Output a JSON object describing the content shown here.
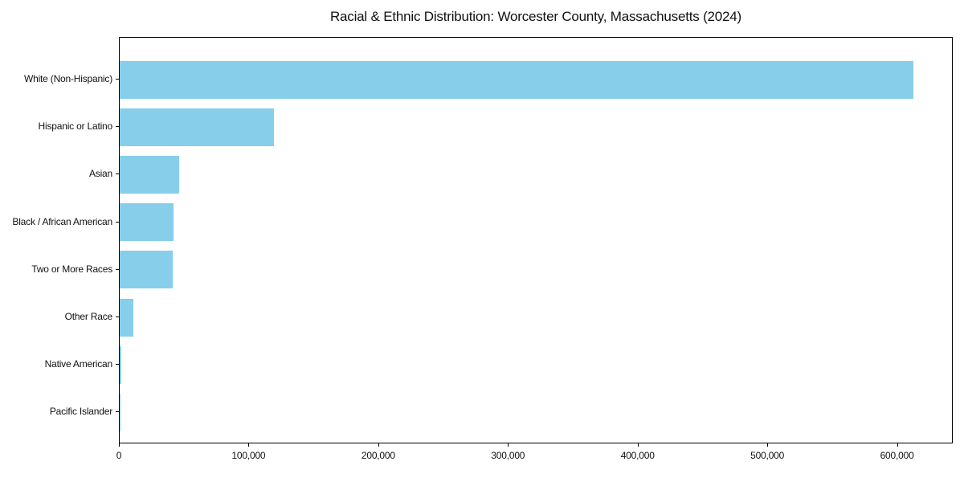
{
  "chart_data": {
    "type": "bar",
    "orientation": "horizontal",
    "title": "Racial & Ethnic Distribution: Worcester County, Massachusetts (2024)",
    "categories": [
      "White (Non-Hispanic)",
      "Hispanic or Latino",
      "Asian",
      "Black / African American",
      "Two or More Races",
      "Other Race",
      "Native American",
      "Pacific Islander"
    ],
    "values": [
      612000,
      119000,
      46000,
      41500,
      41000,
      10500,
      1500,
      400
    ],
    "xlabel": "",
    "ylabel": "",
    "xlim": [
      0,
      643000
    ],
    "xticks": [
      0,
      100000,
      200000,
      300000,
      400000,
      500000,
      600000
    ],
    "xtick_labels": [
      "0",
      "100,000",
      "200,000",
      "300,000",
      "400,000",
      "500,000",
      "600,000"
    ],
    "grid": false,
    "legend": null,
    "bar_color": "#87CEEB",
    "axis_color": "#000000",
    "text_color": "#111111",
    "background_color": "#ffffff"
  }
}
